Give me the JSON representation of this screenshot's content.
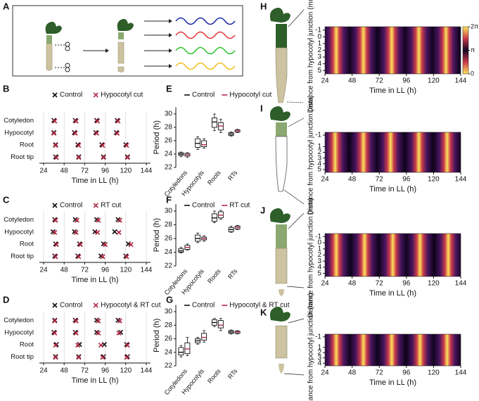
{
  "chart_data": [
    {
      "type": "diagram",
      "label": "A"
    },
    {
      "type": "scatter",
      "label": "B",
      "xlabel": "Time in LL (h)",
      "xlim": [
        24,
        144
      ],
      "xticks": [
        24,
        48,
        72,
        96,
        120,
        144
      ],
      "grid": true,
      "categories": [
        "Cotyledon",
        "Hypocotyl",
        "Root",
        "Root tip"
      ],
      "series": [
        {
          "name": "Control",
          "color": "#111111",
          "values": [
            [
              36,
              61,
              86,
              110
            ],
            [
              36,
              60,
              85,
              109
            ],
            [
              38,
              64,
              92,
              120
            ],
            [
              38,
              65,
              94,
              122
            ]
          ]
        },
        {
          "name": "Hypocotyl cut",
          "color": "#b22a46",
          "values": [
            [
              37,
              62,
              87,
              111
            ],
            [
              36,
              61,
              86,
              110
            ],
            [
              38,
              65,
              93,
              121
            ],
            [
              39,
              65,
              94,
              122
            ]
          ]
        }
      ]
    },
    {
      "type": "scatter",
      "label": "C",
      "xlabel": "Time in LL (h)",
      "xlim": [
        24,
        144
      ],
      "xticks": [
        24,
        48,
        72,
        96,
        120,
        144
      ],
      "grid": true,
      "categories": [
        "Cotyledon",
        "Hypocotyl",
        "Root",
        "Root tip"
      ],
      "series": [
        {
          "name": "Control",
          "color": "#111111",
          "values": [
            [
              37,
              61,
              86,
              111
            ],
            [
              35,
              60,
              84,
              107
            ],
            [
              38,
              66,
              94,
              123
            ],
            [
              37,
              64,
              91,
              120
            ]
          ]
        },
        {
          "name": "RT cut",
          "color": "#b22a46",
          "values": [
            [
              38,
              63,
              88,
              113
            ],
            [
              37,
              62,
              87,
              112
            ],
            [
              39,
              67,
              96,
              126
            ],
            [
              38,
              65,
              93,
              121
            ]
          ]
        }
      ]
    },
    {
      "type": "scatter",
      "label": "D",
      "xlabel": "Time in LL (h)",
      "xlim": [
        24,
        144
      ],
      "xticks": [
        24,
        48,
        72,
        96,
        120,
        144
      ],
      "grid": true,
      "categories": [
        "Cotyledon",
        "Hypocotyl",
        "Root",
        "Root tip"
      ],
      "series": [
        {
          "name": "Control",
          "color": "#111111",
          "values": [
            [
              37,
              61,
              86,
              111
            ],
            [
              36,
              61,
              86,
              114
            ],
            [
              39,
              66,
              95,
              121
            ],
            [
              38,
              65,
              94,
              122
            ]
          ]
        },
        {
          "name": "Hypocotyl & RT cut",
          "color": "#b22a46",
          "values": [
            [
              37,
              62,
              88,
              113
            ],
            [
              37,
              62,
              88,
              112
            ],
            [
              38,
              64,
              91,
              122
            ],
            [
              38,
              65,
              93,
              121
            ]
          ]
        }
      ]
    },
    {
      "type": "box",
      "label": "E",
      "ylabel": "Period (h)",
      "ylim": [
        22,
        31
      ],
      "yticks": [
        22,
        24,
        26,
        28,
        30
      ],
      "categories": [
        "Cotyledons",
        "Hypocotyls",
        "Roots",
        "RTs"
      ],
      "series": [
        {
          "name": "Control",
          "color": "#111111",
          "values": [
            [
              23.6,
              23.8,
              24.0,
              24.2,
              24.3
            ],
            [
              24.7,
              25.0,
              25.6,
              26.3,
              26.6
            ],
            [
              27.5,
              28.0,
              28.8,
              29.4,
              30.0
            ],
            [
              26.7,
              26.8,
              27.0,
              27.2,
              27.3
            ]
          ]
        },
        {
          "name": "Hypocotyl cut",
          "color": "#b22a46",
          "values": [
            [
              23.5,
              23.7,
              23.9,
              24.1,
              24.2
            ],
            [
              24.9,
              25.1,
              25.4,
              26.0,
              26.3
            ],
            [
              27.2,
              27.6,
              28.2,
              28.7,
              29.2
            ],
            [
              27.2,
              27.3,
              27.5,
              27.6,
              27.7
            ]
          ]
        }
      ]
    },
    {
      "type": "box",
      "label": "F",
      "ylabel": "Period (h)",
      "ylim": [
        22,
        31
      ],
      "yticks": [
        22,
        24,
        26,
        28,
        30
      ],
      "categories": [
        "Cotyledons",
        "Hypocotyls",
        "Roots",
        "RTs"
      ],
      "series": [
        {
          "name": "Control",
          "color": "#111111",
          "values": [
            [
              23.9,
              24.0,
              24.2,
              24.5,
              24.7
            ],
            [
              25.4,
              25.6,
              26.0,
              26.5,
              26.8
            ],
            [
              28.3,
              28.5,
              29.0,
              29.6,
              30.0
            ],
            [
              26.9,
              27.0,
              27.3,
              27.6,
              27.8
            ]
          ]
        },
        {
          "name": "RT cut",
          "color": "#b22a46",
          "values": [
            [
              24.3,
              24.4,
              24.7,
              25.0,
              25.2
            ],
            [
              25.6,
              25.8,
              26.0,
              26.2,
              26.4
            ],
            [
              28.8,
              29.0,
              29.4,
              29.9,
              30.1
            ],
            [
              27.3,
              27.4,
              27.6,
              27.8,
              27.9
            ]
          ]
        }
      ]
    },
    {
      "type": "box",
      "label": "G",
      "ylabel": "Period (h)",
      "ylim": [
        22,
        31
      ],
      "yticks": [
        22,
        24,
        26,
        28,
        30
      ],
      "categories": [
        "Cotyledons",
        "Hypocotyls",
        "Roots",
        "RTs"
      ],
      "series": [
        {
          "name": "Control",
          "color": "#111111",
          "values": [
            [
              23.3,
              23.6,
              24.0,
              24.7,
              25.0
            ],
            [
              25.2,
              25.4,
              25.7,
              26.0,
              26.2
            ],
            [
              27.8,
              28.0,
              28.4,
              28.8,
              29.0
            ],
            [
              26.7,
              26.8,
              27.0,
              27.2,
              27.3
            ]
          ]
        },
        {
          "name": "Hypocotyl & RT cut",
          "color": "#b22a46",
          "values": [
            [
              23.5,
              23.8,
              24.5,
              25.4,
              26.2
            ],
            [
              25.5,
              25.8,
              26.2,
              26.8,
              27.2
            ],
            [
              27.2,
              27.6,
              28.0,
              28.7,
              29.0
            ],
            [
              26.7,
              26.8,
              27.0,
              27.1,
              27.2
            ]
          ]
        }
      ]
    },
    {
      "type": "heatmap",
      "label": "H",
      "xlabel": "Time in LL (h)",
      "ylabel": "Distance from hypocotyl junction (mm)",
      "xlim": [
        24,
        144
      ],
      "xticks": [
        24,
        48,
        72,
        96,
        120,
        144
      ],
      "ylim": [
        -1.5,
        5.5
      ],
      "yticks": [
        -1,
        0,
        1,
        2,
        3,
        4,
        5
      ],
      "peak_times": [
        34,
        58,
        83,
        107,
        131
      ],
      "colorbar_lim": [
        0,
        6.28319
      ],
      "colorbar_ticks": [
        {
          "value": 0,
          "label": "0"
        },
        {
          "value": 3.14159,
          "label": "π"
        },
        {
          "value": 6.28319,
          "label": "2π"
        }
      ]
    },
    {
      "type": "heatmap",
      "label": "I",
      "xlabel": "Time in LL (h)",
      "ylabel": "Distance from hypocotyl junction (mm)",
      "xlim": [
        24,
        144
      ],
      "xticks": [
        24,
        48,
        72,
        96,
        120,
        144
      ],
      "ylim": [
        -1.5,
        5.5
      ],
      "yticks": [
        -1,
        1,
        2,
        3,
        4,
        5
      ],
      "peak_times": [
        33,
        58,
        82,
        107,
        132
      ]
    },
    {
      "type": "heatmap",
      "label": "J",
      "xlabel": "Time in LL (h)",
      "ylabel": "Distance from hypocotyl junction (mm)",
      "xlim": [
        24,
        144
      ],
      "xticks": [
        24,
        48,
        72,
        96,
        120,
        144
      ],
      "ylim": [
        -1.5,
        5.5
      ],
      "yticks": [
        -1,
        0,
        1,
        2,
        3,
        4,
        5
      ],
      "peak_times": [
        34,
        59,
        84,
        108,
        133
      ]
    },
    {
      "type": "heatmap",
      "label": "K",
      "xlabel": "Time in LL (h)",
      "ylabel": "Distance from hypocotyl junction (mm)",
      "xlim": [
        24,
        144
      ],
      "xticks": [
        24,
        48,
        72,
        96,
        120,
        144
      ],
      "ylim": [
        -1.5,
        4.5
      ],
      "yticks": [
        -1,
        1,
        2,
        3,
        4
      ],
      "peak_times": [
        34,
        58,
        83,
        108,
        132
      ]
    }
  ]
}
